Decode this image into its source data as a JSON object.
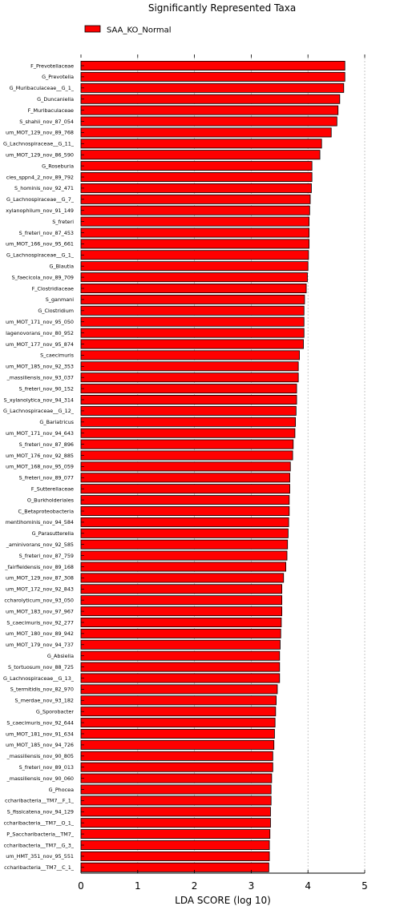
{
  "chart_data": {
    "type": "bar",
    "orientation": "horizontal",
    "title": "Significantly Represented Taxa",
    "xlabel": "LDA SCORE (log 10)",
    "ylabel": "",
    "xlim": [
      0,
      5
    ],
    "xticks": [
      "0",
      "1",
      "2",
      "3",
      "4",
      "5"
    ],
    "grid": "vertical dashed",
    "legend_position": "top-left",
    "bar_color": "#ff0000",
    "series": [
      {
        "name": "SAA_KO_Normal",
        "color": "#ff0000",
        "categories": [
          "F_Prevotellaceae",
          "G_Prevotella",
          "G_Muribaculaceae__G_1_",
          "G_Duncaniella",
          "F_Muribaculaceae",
          "S_shahii_nov_87_054",
          "um_MOT_129_nov_89_768",
          "G_Lachnospiraceae__G_11_",
          "um_MOT_129_nov_86_590",
          "G_Roseburia",
          "cies_sppn4_2_nov_89_792",
          "S_hominis_nov_92_471",
          "G_Lachnospiraceae__G_7_",
          "xylanophilum_nov_91_149",
          "S_freteri",
          "S_freteri_nov_87_453",
          "um_MOT_166_nov_95_661",
          "G_Lachnospiraceae__G_1_",
          "G_Blautia",
          "S_faecicola_nov_89_709",
          "F_Clostridiaceae",
          "S_ganmani",
          "G_Clostridium",
          "um_MOT_171_nov_95_050",
          "lagenovorans_nov_80_952",
          "um_MOT_177_nov_95_874",
          "S_caecimuris",
          "um_MOT_185_nov_92_353",
          "_massiliensis_nov_93_037",
          "S_freteri_nov_90_152",
          "S_xylanolytica_nov_94_314",
          "G_Lachnospiraceae__G_12_",
          "G_Bariatricus",
          "um_MOT_171_nov_94_643",
          "S_freteri_nov_87_896",
          "um_MOT_176_nov_92_885",
          "um_MOT_168_nov_95_059",
          "S_freteri_nov_89_077",
          "F_Sutterellaceae",
          "O_Burkholderiales",
          "C_Betaproteobacteria",
          "mentihominis_nov_94_584",
          "G_Parasutterella",
          "_aminivorans_nov_92_585",
          "S_freteri_nov_87_759",
          "_fairfieldensis_nov_89_168",
          "um_MOT_129_nov_87_308",
          "um_MOT_172_nov_92_843",
          "ccharolyticum_nov_93_050",
          "um_MOT_183_nov_97_967",
          "S_caecimuris_nov_92_277",
          "um_MOT_180_nov_89_942",
          "um_MOT_179_nov_94_737",
          "G_Absiella",
          "S_tortuosum_nov_88_725",
          "G_Lachnospiraceae__G_13_",
          "S_termitidis_nov_82_970",
          "S_merdae_nov_93_182",
          "G_Sporobacter",
          "S_caecimuris_nov_92_644",
          "um_MOT_181_nov_91_634",
          "um_MOT_185_nov_94_726",
          "_massiliensis_nov_90_805",
          "S_freteri_nov_89_013",
          "_massiliensis_nov_90_060",
          "G_Phocea",
          "ccharibacteria__TM7__F_1_",
          "S_fissicatena_nov_94_129",
          "ccharibacteria__TM7__O_1_",
          "P_Saccharibacteria__TM7_",
          "ccharibacteria__TM7__G_3_",
          "um_HMT_351_nov_95_551",
          "ccharibacteria__TM7__C_1_"
        ],
        "values": [
          4.65,
          4.65,
          4.63,
          4.56,
          4.53,
          4.51,
          4.41,
          4.24,
          4.21,
          4.07,
          4.07,
          4.06,
          4.04,
          4.03,
          4.02,
          4.02,
          4.02,
          4.01,
          4.0,
          3.99,
          3.97,
          3.94,
          3.93,
          3.93,
          3.93,
          3.92,
          3.85,
          3.83,
          3.83,
          3.8,
          3.8,
          3.79,
          3.78,
          3.77,
          3.74,
          3.73,
          3.69,
          3.68,
          3.68,
          3.67,
          3.67,
          3.66,
          3.65,
          3.64,
          3.63,
          3.61,
          3.57,
          3.54,
          3.54,
          3.54,
          3.53,
          3.52,
          3.51,
          3.5,
          3.5,
          3.5,
          3.46,
          3.44,
          3.43,
          3.42,
          3.41,
          3.4,
          3.38,
          3.38,
          3.36,
          3.35,
          3.35,
          3.34,
          3.34,
          3.33,
          3.32,
          3.32,
          3.31
        ]
      }
    ]
  }
}
